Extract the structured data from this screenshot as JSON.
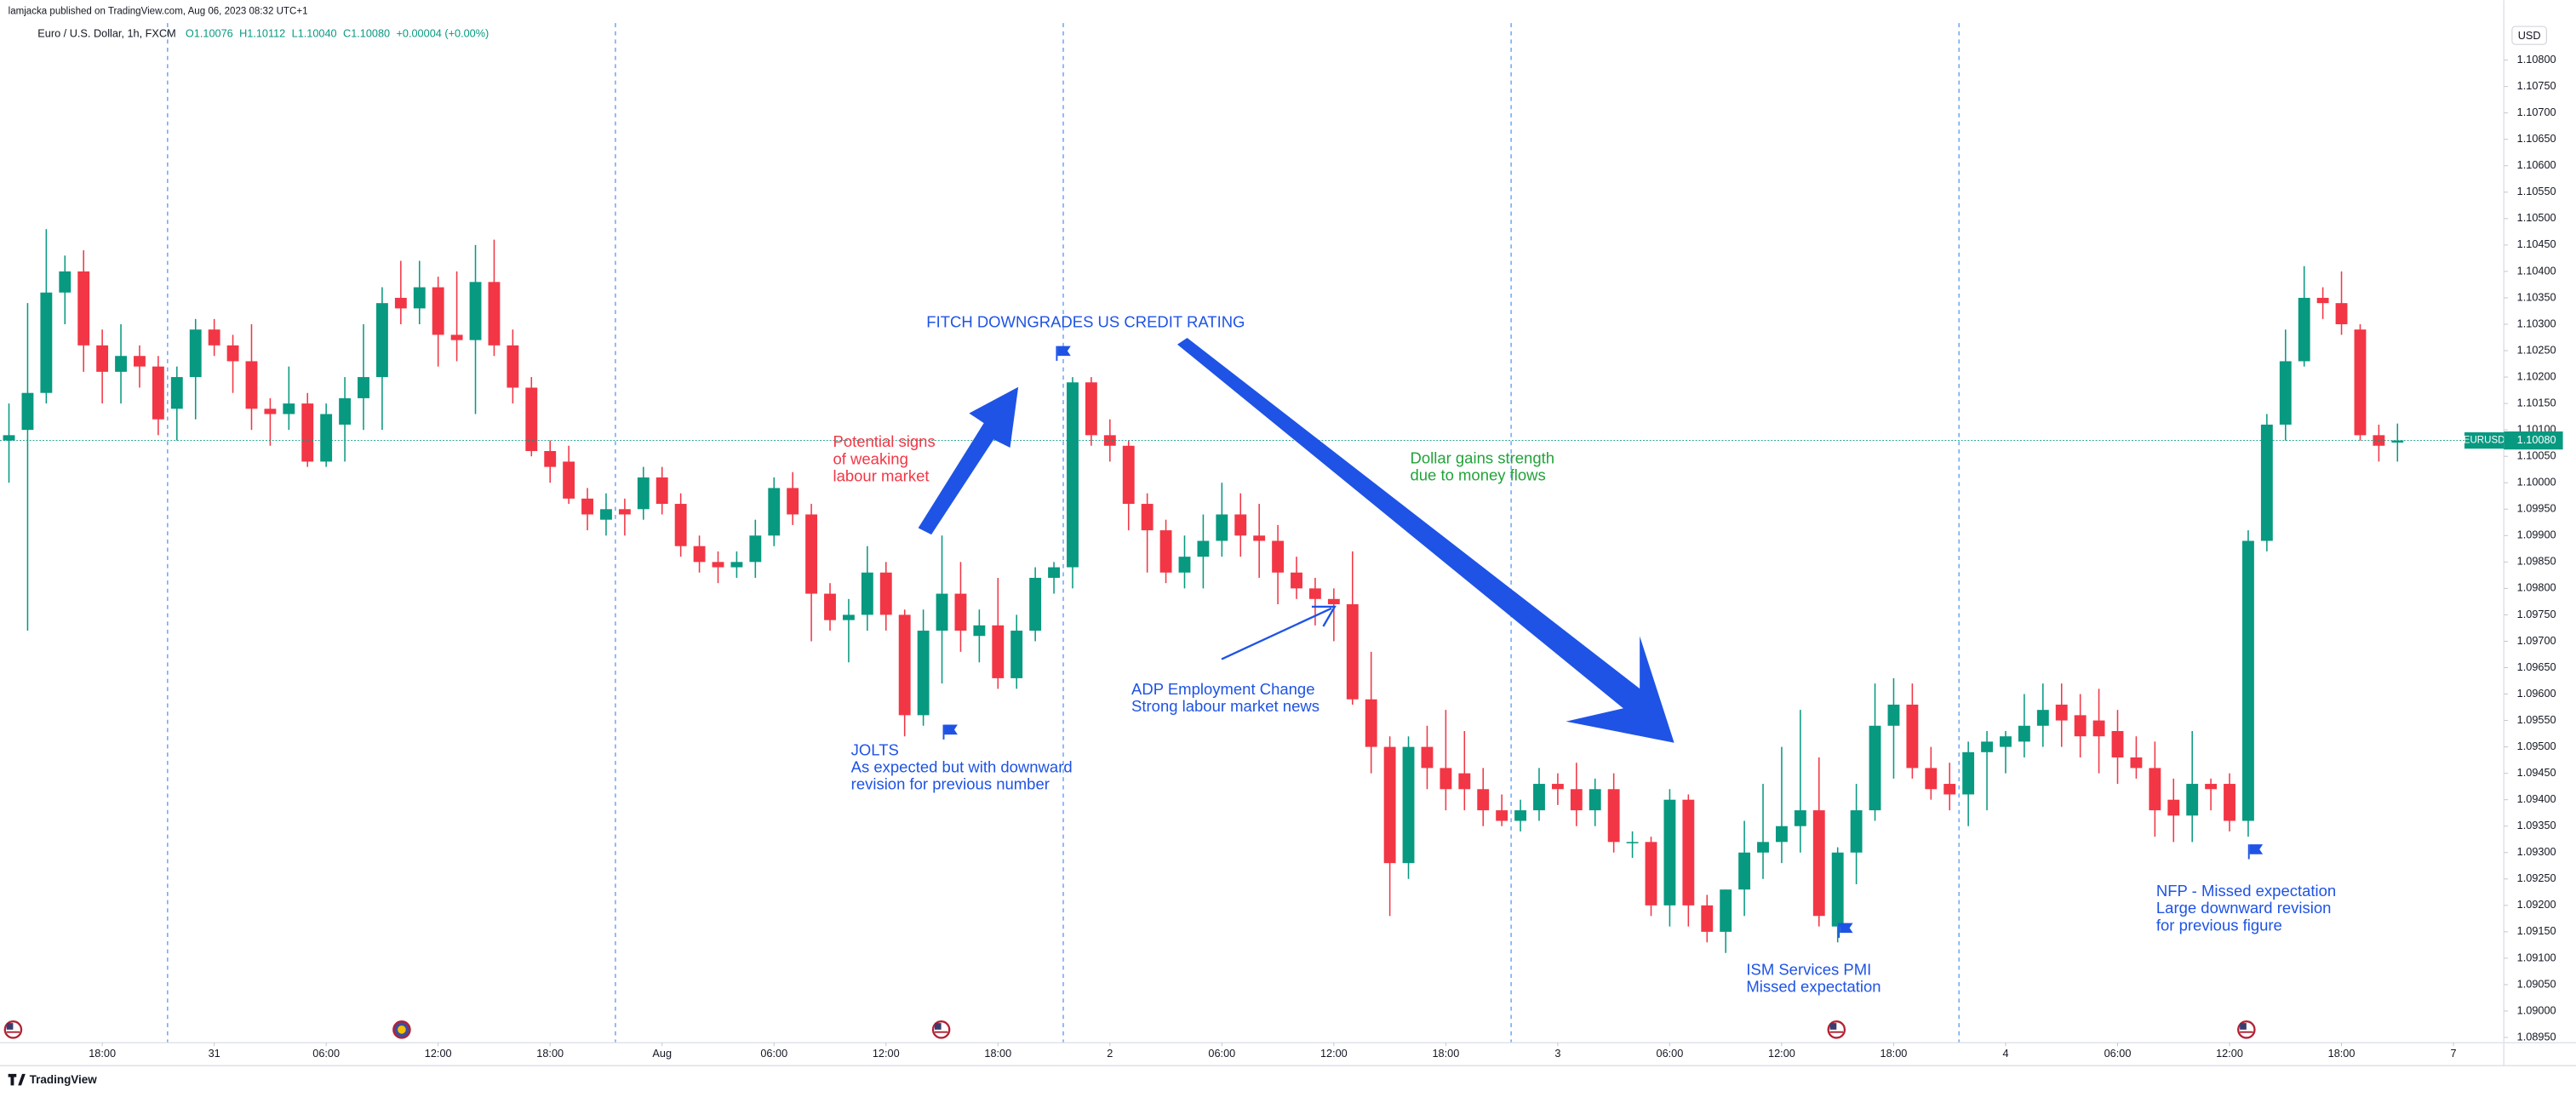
{
  "chart_data": {
    "type": "candlestick",
    "publisher": "lamjacka published on TradingView.com, Aug 06, 2023 08:32 UTC+1",
    "symbol": "Euro / U.S. Dollar, 1h, FXCM",
    "ohlc_labels": [
      "O1.10076",
      "H1.10112",
      "L1.10040",
      "C1.10080"
    ],
    "change": "+0.00004 (+0.00%)",
    "currency": "USD",
    "ticker": "EURUSD",
    "last_price": {
      "value": 1.1008,
      "label": "1.10080"
    },
    "brand": "TradingView",
    "up_color": "#089981",
    "down_color": "#f23645",
    "session_color": "#5b9cf6",
    "xlim": [
      -0.48,
      133.7
    ],
    "ylim": [
      1.0894,
      1.1087
    ],
    "xticks": [
      {
        "value": 5,
        "label": "18:00"
      },
      {
        "value": 11,
        "label": "31"
      },
      {
        "value": 17,
        "label": "06:00"
      },
      {
        "value": 23,
        "label": "12:00"
      },
      {
        "value": 29,
        "label": "18:00"
      },
      {
        "value": 35,
        "label": "Aug"
      },
      {
        "value": 41,
        "label": "06:00"
      },
      {
        "value": 47,
        "label": "12:00"
      },
      {
        "value": 53,
        "label": "18:00"
      },
      {
        "value": 59,
        "label": "2"
      },
      {
        "value": 65,
        "label": "06:00"
      },
      {
        "value": 71,
        "label": "12:00"
      },
      {
        "value": 77,
        "label": "18:00"
      },
      {
        "value": 83,
        "label": "3"
      },
      {
        "value": 89,
        "label": "06:00"
      },
      {
        "value": 95,
        "label": "12:00"
      },
      {
        "value": 101,
        "label": "18:00"
      },
      {
        "value": 107,
        "label": "4"
      },
      {
        "value": 113,
        "label": "06:00"
      },
      {
        "value": 119,
        "label": "12:00"
      },
      {
        "value": 125,
        "label": "18:00"
      },
      {
        "value": 131,
        "label": "7"
      }
    ],
    "yticks": [
      {
        "value": 1.0895,
        "label": "1.08950"
      },
      {
        "value": 1.09,
        "label": "1.09000"
      },
      {
        "value": 1.0905,
        "label": "1.09050"
      },
      {
        "value": 1.091,
        "label": "1.09100"
      },
      {
        "value": 1.0915,
        "label": "1.09150"
      },
      {
        "value": 1.092,
        "label": "1.09200"
      },
      {
        "value": 1.0925,
        "label": "1.09250"
      },
      {
        "value": 1.093,
        "label": "1.09300"
      },
      {
        "value": 1.0935,
        "label": "1.09350"
      },
      {
        "value": 1.094,
        "label": "1.09400"
      },
      {
        "value": 1.0945,
        "label": "1.09450"
      },
      {
        "value": 1.095,
        "label": "1.09500"
      },
      {
        "value": 1.0955,
        "label": "1.09550"
      },
      {
        "value": 1.096,
        "label": "1.09600"
      },
      {
        "value": 1.0965,
        "label": "1.09650"
      },
      {
        "value": 1.097,
        "label": "1.09700"
      },
      {
        "value": 1.0975,
        "label": "1.09750"
      },
      {
        "value": 1.098,
        "label": "1.09800"
      },
      {
        "value": 1.0985,
        "label": "1.09850"
      },
      {
        "value": 1.099,
        "label": "1.09900"
      },
      {
        "value": 1.0995,
        "label": "1.09950"
      },
      {
        "value": 1.1,
        "label": "1.10000"
      },
      {
        "value": 1.1005,
        "label": "1.10050"
      },
      {
        "value": 1.101,
        "label": "1.10100"
      },
      {
        "value": 1.1015,
        "label": "1.10150"
      },
      {
        "value": 1.102,
        "label": "1.10200"
      },
      {
        "value": 1.1025,
        "label": "1.10250"
      },
      {
        "value": 1.103,
        "label": "1.10300"
      },
      {
        "value": 1.1035,
        "label": "1.10350"
      },
      {
        "value": 1.104,
        "label": "1.10400"
      },
      {
        "value": 1.1045,
        "label": "1.10450"
      },
      {
        "value": 1.105,
        "label": "1.10500"
      },
      {
        "value": 1.1055,
        "label": "1.10550"
      },
      {
        "value": 1.106,
        "label": "1.10600"
      },
      {
        "value": 1.1065,
        "label": "1.10650"
      },
      {
        "value": 1.107,
        "label": "1.10700"
      },
      {
        "value": 1.1075,
        "label": "1.10750"
      },
      {
        "value": 1.108,
        "label": "1.10800"
      }
    ],
    "session_breaks": [
      8.5,
      32.5,
      56.5,
      80.5,
      104.5
    ],
    "open": [
      1.1008,
      1.101,
      1.1017,
      1.1036,
      1.104,
      1.1026,
      1.1021,
      1.1024,
      1.1022,
      1.1014,
      1.102,
      1.1029,
      1.1026,
      1.1023,
      1.1014,
      1.1013,
      1.1015,
      1.1004,
      1.1011,
      1.1016,
      1.102,
      1.1035,
      1.1033,
      1.1037,
      1.1028,
      1.1027,
      1.1038,
      1.1026,
      1.1018,
      1.1006,
      1.1004,
      1.0997,
      1.0993,
      1.0995,
      1.0995,
      1.1001,
      1.0996,
      1.0988,
      1.0985,
      1.0984,
      1.0985,
      1.099,
      1.0999,
      1.0994,
      1.0979,
      1.0974,
      1.0975,
      1.0983,
      1.0975,
      1.0956,
      1.0972,
      1.0979,
      1.0971,
      1.0973,
      1.0963,
      1.0972,
      1.0982,
      1.0984,
      1.1019,
      1.1009,
      1.1007,
      1.0996,
      1.0991,
      1.0983,
      1.0986,
      1.0989,
      1.0994,
      1.099,
      1.0989,
      1.0983,
      1.098,
      1.0978,
      1.0977,
      1.0959,
      1.095,
      1.0928,
      1.095,
      1.0946,
      1.0945,
      1.0942,
      1.0938,
      1.0936,
      1.0938,
      1.0943,
      1.0942,
      1.0938,
      1.0942,
      1.0932,
      1.0932,
      1.092,
      1.094,
      1.092,
      1.0915,
      1.0923,
      1.093,
      1.0932,
      1.0935,
      1.0938,
      1.0916,
      1.093,
      1.0938,
      1.0954,
      1.0958,
      1.0946,
      1.0943,
      1.0941,
      1.0949,
      1.095,
      1.0951,
      1.0954,
      1.0958,
      1.0956,
      1.0955,
      1.0953,
      1.0948,
      1.0946,
      1.094,
      1.0937,
      1.0943,
      1.0943,
      1.0936,
      1.0989,
      1.1011,
      1.1023,
      1.1035,
      1.1034,
      1.1029,
      1.1009,
      1.10076
    ],
    "high": [
      1.1015,
      1.1034,
      1.1048,
      1.1043,
      1.1044,
      1.1029,
      1.103,
      1.1026,
      1.1024,
      1.1022,
      1.1031,
      1.1031,
      1.1028,
      1.103,
      1.1016,
      1.1022,
      1.1017,
      1.1015,
      1.102,
      1.103,
      1.1037,
      1.1042,
      1.1042,
      1.1039,
      1.104,
      1.1045,
      1.1046,
      1.1029,
      1.102,
      1.1008,
      1.1007,
      1.0999,
      1.0998,
      1.0997,
      1.1003,
      1.1003,
      1.0998,
      1.099,
      1.0987,
      1.0987,
      1.0993,
      1.1001,
      1.1002,
      1.0996,
      1.0981,
      1.0978,
      1.0988,
      1.0985,
      1.0976,
      1.0976,
      1.099,
      1.0985,
      1.0976,
      1.0982,
      1.0975,
      1.0984,
      1.0985,
      1.102,
      1.102,
      1.1012,
      1.1008,
      1.0998,
      1.0993,
      1.099,
      1.0994,
      1.1,
      1.0998,
      1.0996,
      1.0992,
      1.0986,
      1.0982,
      1.098,
      1.0987,
      1.0968,
      1.0952,
      1.0952,
      1.0954,
      1.0957,
      1.0953,
      1.0946,
      1.0941,
      1.094,
      1.0946,
      1.0945,
      1.0947,
      1.0944,
      1.0945,
      1.0934,
      1.0933,
      1.0942,
      1.0941,
      1.0922,
      1.0923,
      1.0936,
      1.0943,
      1.095,
      1.0957,
      1.0948,
      1.0931,
      1.0943,
      1.0962,
      1.0963,
      1.0962,
      1.095,
      1.0947,
      1.0951,
      1.0953,
      1.0953,
      1.096,
      1.0962,
      1.0962,
      1.096,
      1.0961,
      1.0957,
      1.0952,
      1.0951,
      1.0944,
      1.0953,
      1.0944,
      1.0945,
      1.0991,
      1.1013,
      1.1029,
      1.1041,
      1.1037,
      1.104,
      1.103,
      1.1011,
      1.10112
    ],
    "low": [
      1.1,
      1.0972,
      1.1015,
      1.103,
      1.1021,
      1.1015,
      1.1015,
      1.1018,
      1.1009,
      1.1008,
      1.1012,
      1.1024,
      1.1017,
      1.101,
      1.1007,
      1.101,
      1.1003,
      1.1003,
      1.1004,
      1.101,
      1.101,
      1.103,
      1.103,
      1.1022,
      1.1023,
      1.1013,
      1.1024,
      1.1015,
      1.1005,
      1.1,
      1.0996,
      1.0991,
      1.099,
      1.099,
      1.0993,
      1.0994,
      1.0986,
      1.0983,
      1.0981,
      1.0982,
      1.0982,
      1.0988,
      1.0992,
      1.097,
      1.0972,
      1.0966,
      1.0972,
      1.0972,
      1.0952,
      1.0954,
      1.0962,
      1.0968,
      1.0966,
      1.0961,
      1.0961,
      1.097,
      1.0979,
      1.098,
      1.1007,
      1.1004,
      1.0991,
      1.0983,
      1.0981,
      1.098,
      1.098,
      1.0986,
      1.0986,
      1.0982,
      1.0977,
      1.0978,
      1.0973,
      1.097,
      1.0958,
      1.0945,
      1.0918,
      1.0925,
      1.0942,
      1.0938,
      1.0938,
      1.0935,
      1.0935,
      1.0934,
      1.0936,
      1.0939,
      1.0935,
      1.0935,
      1.093,
      1.0929,
      1.0918,
      1.0916,
      1.0916,
      1.0913,
      1.0911,
      1.0918,
      1.0925,
      1.0928,
      1.093,
      1.0916,
      1.0913,
      1.0924,
      1.0936,
      1.0944,
      1.0944,
      1.094,
      1.0938,
      1.0935,
      1.0938,
      1.0945,
      1.0948,
      1.095,
      1.095,
      1.0948,
      1.0945,
      1.0943,
      1.0944,
      1.0933,
      1.0932,
      1.0932,
      1.0938,
      1.0934,
      1.0933,
      1.0987,
      1.1008,
      1.1022,
      1.1031,
      1.1028,
      1.1008,
      1.1004,
      1.1004
    ],
    "close": [
      1.1009,
      1.1017,
      1.1036,
      1.104,
      1.1026,
      1.1021,
      1.1024,
      1.1022,
      1.1012,
      1.102,
      1.1029,
      1.1026,
      1.1023,
      1.1014,
      1.1013,
      1.1015,
      1.1004,
      1.1013,
      1.1016,
      1.102,
      1.1034,
      1.1033,
      1.1037,
      1.1028,
      1.1027,
      1.1038,
      1.1026,
      1.1018,
      1.1006,
      1.1003,
      1.0997,
      1.0994,
      1.0995,
      1.0994,
      1.1001,
      1.0996,
      1.0988,
      1.0985,
      1.0984,
      1.0985,
      1.099,
      1.0999,
      1.0994,
      1.0979,
      1.0974,
      1.0975,
      1.0983,
      1.0975,
      1.0956,
      1.0972,
      1.0979,
      1.0972,
      1.0973,
      1.0963,
      1.0972,
      1.0982,
      1.0984,
      1.1019,
      1.1009,
      1.1007,
      1.0996,
      1.0991,
      1.0983,
      1.0986,
      1.0989,
      1.0994,
      1.099,
      1.0989,
      1.0983,
      1.098,
      1.0978,
      1.0977,
      1.0959,
      1.095,
      1.0928,
      1.095,
      1.0946,
      1.0942,
      1.0942,
      1.0938,
      1.0936,
      1.0938,
      1.0943,
      1.0942,
      1.0938,
      1.0942,
      1.0932,
      1.0932,
      1.092,
      1.094,
      1.092,
      1.0915,
      1.0923,
      1.093,
      1.0932,
      1.0935,
      1.0938,
      1.0918,
      1.093,
      1.0938,
      1.0954,
      1.0958,
      1.0946,
      1.0942,
      1.0941,
      1.0949,
      1.0951,
      1.0952,
      1.0954,
      1.0957,
      1.0955,
      1.0952,
      1.0952,
      1.0948,
      1.0946,
      1.0938,
      1.0937,
      1.0943,
      1.0942,
      1.0936,
      1.0989,
      1.1011,
      1.1023,
      1.1035,
      1.1034,
      1.103,
      1.1009,
      1.1007,
      1.1008
    ],
    "annotations": [
      {
        "lines": [
          "FITCH DOWNGRADES US CREDIT RATING"
        ],
        "color": "#1e53e5"
      },
      {
        "lines": [
          "Potential signs",
          "of weaking",
          "labour market"
        ],
        "color": "#f23645"
      },
      {
        "lines": [
          "Dollar gains strength",
          "due to money flows"
        ],
        "color": "#22a33a"
      },
      {
        "lines": [
          "ADP Employment Change",
          "Strong labour market news"
        ],
        "color": "#1e53e5"
      },
      {
        "lines": [
          "JOLTS",
          "As expected but with downward",
          "revision for previous number"
        ],
        "color": "#1e53e5"
      },
      {
        "lines": [
          "ISM Services PMI",
          "Missed expectation"
        ],
        "color": "#1e53e5"
      },
      {
        "lines": [
          "NFP - Missed expectation",
          "Large downward revision",
          "for previous figure"
        ],
        "color": "#1e53e5"
      }
    ]
  }
}
